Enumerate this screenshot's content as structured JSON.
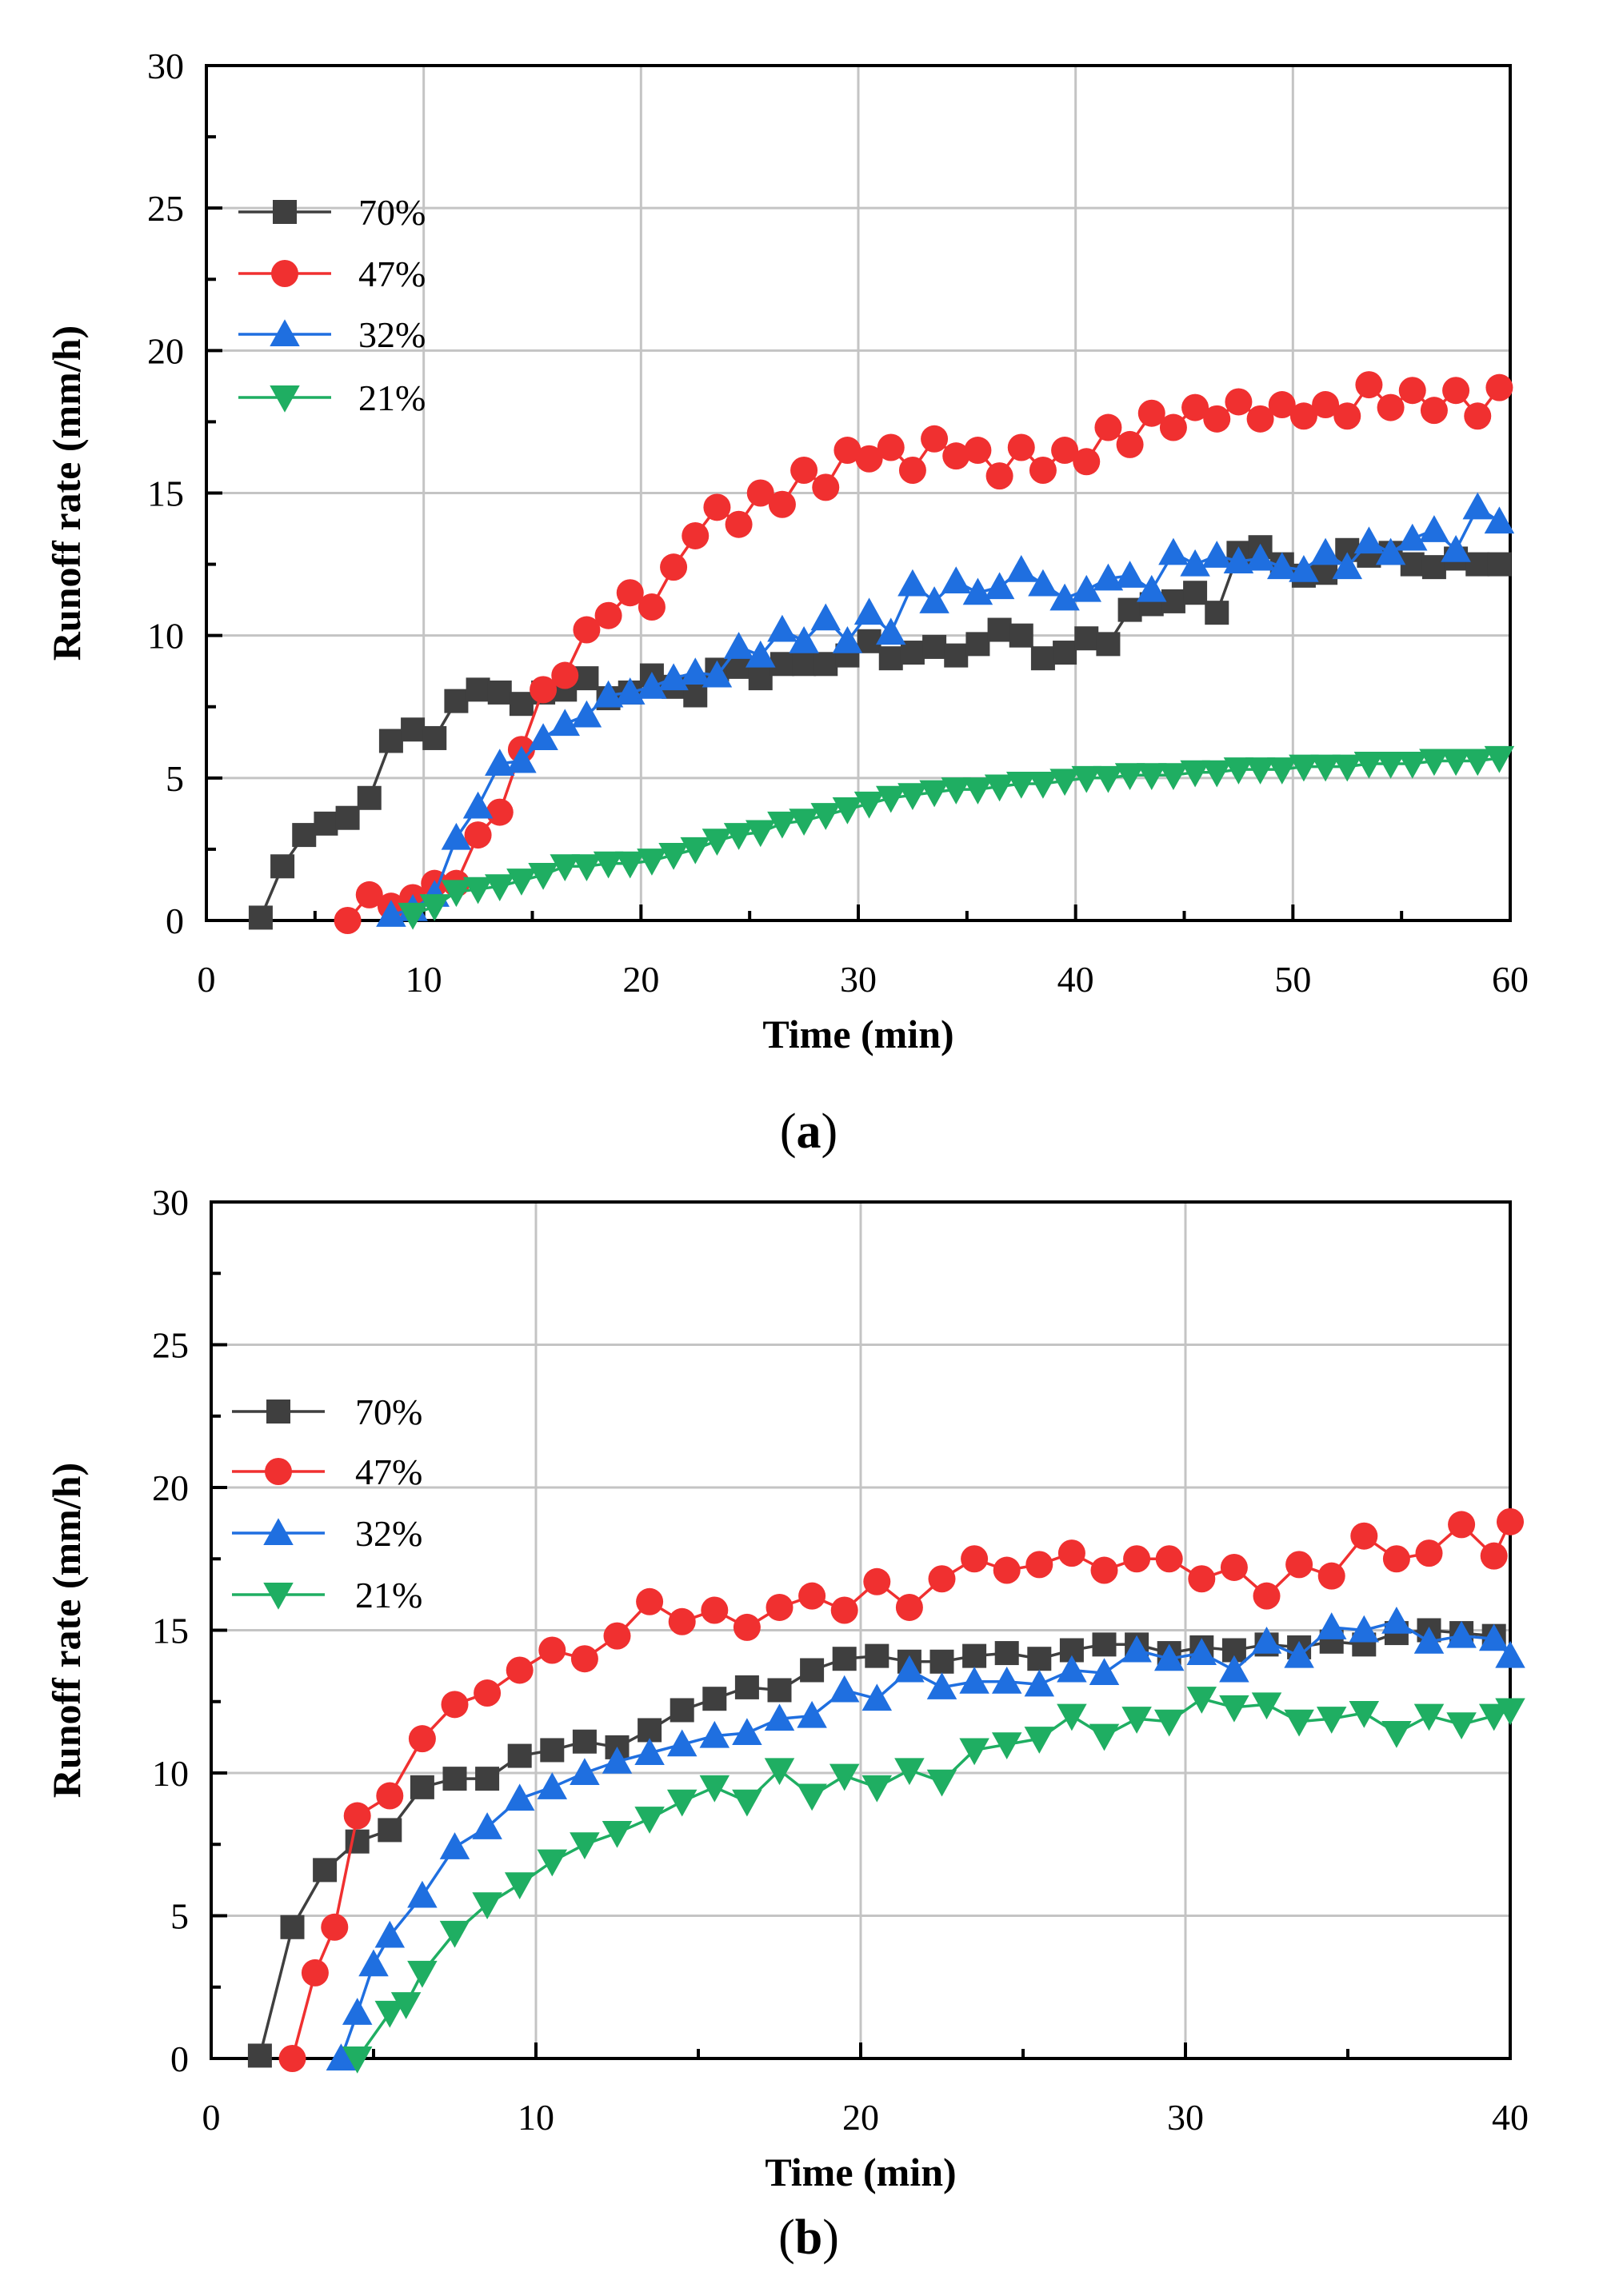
{
  "chart_data": [
    {
      "type": "line",
      "panel_label": "a",
      "xlabel": "Time (min)",
      "ylabel": "Runoff rate (mm/h)",
      "xlim": [
        0,
        60
      ],
      "ylim": [
        0,
        30
      ],
      "xticks": [
        0,
        10,
        20,
        30,
        40,
        50,
        60
      ],
      "yticks": [
        0,
        5,
        10,
        15,
        20,
        25,
        30
      ],
      "grid": true,
      "legend_position": "upper-left",
      "series": [
        {
          "name": "70%",
          "color": "#3f3f3f",
          "marker": "square",
          "x": [
            2.5,
            3.5,
            4.5,
            5.5,
            6.5,
            7.5,
            8.5,
            9.5,
            10.5,
            11.5,
            12.5,
            13.5,
            14.5,
            15.5,
            16.5,
            17.5,
            18.5,
            19.5,
            20.5,
            21.5,
            22.5,
            23.5,
            24.5,
            25.5,
            26.5,
            27.5,
            28.5,
            29.5,
            30.5,
            31.5,
            32.5,
            33.5,
            34.5,
            35.5,
            36.5,
            37.5,
            38.5,
            39.5,
            40.5,
            41.5,
            42.5,
            43.5,
            44.5,
            45.5,
            46.5,
            47.5,
            48.5,
            49.5,
            50.5,
            51.5,
            52.5,
            53.5,
            54.5,
            55.5,
            56.5,
            57.5,
            58.5,
            59.5
          ],
          "y": [
            0.1,
            1.9,
            3.0,
            3.4,
            3.6,
            4.3,
            6.3,
            6.7,
            6.4,
            7.7,
            8.1,
            8.0,
            7.6,
            8.0,
            8.1,
            8.5,
            7.8,
            8.0,
            8.6,
            8.2,
            7.9,
            8.8,
            8.9,
            8.5,
            9.0,
            9.0,
            9.0,
            9.3,
            9.8,
            9.2,
            9.4,
            9.6,
            9.3,
            9.7,
            10.2,
            10.0,
            9.2,
            9.4,
            9.9,
            9.7,
            10.9,
            11.1,
            11.2,
            11.5,
            10.8,
            12.9,
            13.1,
            12.5,
            12.1,
            12.2,
            13.0,
            12.8,
            12.9,
            12.5,
            12.4,
            12.7,
            12.5,
            12.5
          ]
        },
        {
          "name": "47%",
          "color": "#f03030",
          "marker": "circle",
          "x": [
            6.5,
            7.5,
            8.5,
            9.5,
            10.5,
            11.5,
            12.5,
            13.5,
            14.5,
            15.5,
            16.5,
            17.5,
            18.5,
            19.5,
            20.5,
            21.5,
            22.5,
            23.5,
            24.5,
            25.5,
            26.5,
            27.5,
            28.5,
            29.5,
            30.5,
            31.5,
            32.5,
            33.5,
            34.5,
            35.5,
            36.5,
            37.5,
            38.5,
            39.5,
            40.5,
            41.5,
            42.5,
            43.5,
            44.5,
            45.5,
            46.5,
            47.5,
            48.5,
            49.5,
            50.5,
            51.5,
            52.5,
            53.5,
            54.5,
            55.5,
            56.5,
            57.5,
            58.5,
            59.5
          ],
          "y": [
            0.0,
            0.9,
            0.5,
            0.8,
            1.3,
            1.3,
            3.0,
            3.8,
            6.0,
            8.1,
            8.6,
            10.2,
            10.7,
            11.5,
            11.0,
            12.4,
            13.5,
            14.5,
            13.9,
            15.0,
            14.6,
            15.8,
            15.2,
            16.5,
            16.2,
            16.6,
            15.8,
            16.9,
            16.3,
            16.5,
            15.6,
            16.6,
            15.8,
            16.5,
            16.1,
            17.3,
            16.7,
            17.8,
            17.3,
            18.0,
            17.6,
            18.2,
            17.6,
            18.1,
            17.7,
            18.1,
            17.7,
            18.8,
            18.0,
            18.6,
            17.9,
            18.6,
            17.7,
            18.7
          ]
        },
        {
          "name": "32%",
          "color": "#1f6fe0",
          "marker": "triangle-up",
          "x": [
            8.5,
            9.5,
            10.5,
            11.5,
            12.5,
            13.5,
            14.5,
            15.5,
            16.5,
            17.5,
            18.5,
            19.5,
            20.5,
            21.5,
            22.5,
            23.5,
            24.5,
            25.5,
            26.5,
            27.5,
            28.5,
            29.5,
            30.5,
            31.5,
            32.5,
            33.5,
            34.5,
            35.5,
            36.5,
            37.5,
            38.5,
            39.5,
            40.5,
            41.5,
            42.5,
            43.5,
            44.5,
            45.5,
            46.5,
            47.5,
            48.5,
            49.5,
            50.5,
            51.5,
            52.5,
            53.5,
            54.5,
            55.5,
            56.5,
            57.5,
            58.5,
            59.5
          ],
          "y": [
            0.2,
            0.4,
            0.9,
            2.9,
            4.0,
            5.5,
            5.6,
            6.4,
            6.9,
            7.2,
            7.9,
            8.0,
            8.2,
            8.5,
            8.7,
            8.6,
            9.6,
            9.3,
            10.2,
            9.8,
            10.6,
            9.8,
            10.8,
            10.1,
            11.8,
            11.2,
            11.9,
            11.5,
            11.7,
            12.3,
            11.8,
            11.3,
            11.6,
            12.0,
            12.1,
            11.6,
            12.9,
            12.5,
            12.8,
            12.6,
            12.7,
            12.4,
            12.3,
            12.9,
            12.4,
            13.3,
            12.9,
            13.4,
            13.7,
            13.0,
            14.5,
            14.0
          ]
        },
        {
          "name": "21%",
          "color": "#1fae62",
          "marker": "triangle-down",
          "x": [
            9.5,
            10.5,
            11.5,
            12.5,
            13.5,
            14.5,
            15.5,
            16.5,
            17.5,
            18.5,
            19.5,
            20.5,
            21.5,
            22.5,
            23.5,
            24.5,
            25.5,
            26.5,
            27.5,
            28.5,
            29.5,
            30.5,
            31.5,
            32.5,
            33.5,
            34.5,
            35.5,
            36.5,
            37.5,
            38.5,
            39.5,
            40.5,
            41.5,
            42.5,
            43.5,
            44.5,
            45.5,
            46.5,
            47.5,
            48.5,
            49.5,
            50.5,
            51.5,
            52.5,
            53.5,
            54.5,
            55.5,
            56.5,
            57.5,
            58.5,
            59.5
          ],
          "y": [
            0.2,
            0.5,
            1.0,
            1.1,
            1.2,
            1.4,
            1.6,
            1.9,
            1.9,
            2.0,
            2.0,
            2.1,
            2.3,
            2.5,
            2.8,
            3.0,
            3.1,
            3.4,
            3.5,
            3.7,
            3.9,
            4.1,
            4.3,
            4.4,
            4.5,
            4.6,
            4.6,
            4.7,
            4.8,
            4.8,
            4.9,
            5.0,
            5.0,
            5.1,
            5.1,
            5.1,
            5.2,
            5.2,
            5.3,
            5.3,
            5.3,
            5.4,
            5.4,
            5.4,
            5.5,
            5.5,
            5.5,
            5.6,
            5.6,
            5.6,
            5.7
          ]
        }
      ]
    },
    {
      "type": "line",
      "panel_label": "b",
      "xlabel": "Time (min)",
      "ylabel": "Runoff rate (mm/h)",
      "xlim": [
        0,
        40
      ],
      "ylim": [
        0,
        30
      ],
      "xticks": [
        0,
        10,
        20,
        30,
        40
      ],
      "yticks": [
        0,
        5,
        10,
        15,
        20,
        25,
        30
      ],
      "grid": true,
      "legend_position": "upper-left",
      "series": [
        {
          "name": "70%",
          "color": "#3f3f3f",
          "marker": "square",
          "x": [
            1.5,
            2.5,
            3.5,
            4.5,
            5.5,
            6.5,
            7.5,
            8.5,
            9.5,
            10.5,
            11.5,
            12.5,
            13.5,
            14.5,
            15.5,
            16.5,
            17.5,
            18.5,
            19.5,
            20.5,
            21.5,
            22.5,
            23.5,
            24.5,
            25.5,
            26.5,
            27.5,
            28.5,
            29.5,
            30.5,
            31.5,
            32.5,
            33.5,
            34.5,
            35.5,
            36.5,
            37.5,
            38.5,
            39.5
          ],
          "y": [
            0.1,
            4.6,
            6.6,
            7.6,
            8.0,
            9.5,
            9.8,
            9.8,
            10.6,
            10.8,
            11.1,
            10.9,
            11.5,
            12.2,
            12.6,
            13.0,
            12.9,
            13.6,
            14.0,
            14.1,
            13.9,
            13.9,
            14.1,
            14.2,
            14.0,
            14.3,
            14.5,
            14.5,
            14.2,
            14.4,
            14.3,
            14.5,
            14.4,
            14.6,
            14.5,
            14.9,
            15.0,
            14.9,
            14.8
          ]
        },
        {
          "name": "47%",
          "color": "#f03030",
          "marker": "circle",
          "x": [
            2.5,
            3.2,
            3.8,
            4.5,
            5.5,
            6.5,
            7.5,
            8.5,
            9.5,
            10.5,
            11.5,
            12.5,
            13.5,
            14.5,
            15.5,
            16.5,
            17.5,
            18.5,
            19.5,
            20.5,
            21.5,
            22.5,
            23.5,
            24.5,
            25.5,
            26.5,
            27.5,
            28.5,
            29.5,
            30.5,
            31.5,
            32.5,
            33.5,
            34.5,
            35.5,
            36.5,
            37.5,
            38.5,
            39.5,
            40.0
          ],
          "y": [
            0.0,
            3.0,
            4.6,
            8.5,
            9.2,
            11.2,
            12.4,
            12.8,
            13.6,
            14.3,
            14.0,
            14.8,
            16.0,
            15.3,
            15.7,
            15.1,
            15.8,
            16.2,
            15.7,
            16.7,
            15.8,
            16.8,
            17.5,
            17.1,
            17.3,
            17.7,
            17.1,
            17.5,
            17.5,
            16.8,
            17.2,
            16.2,
            17.3,
            16.9,
            18.3,
            17.5,
            17.7,
            18.7,
            17.6,
            18.8
          ]
        },
        {
          "name": "32%",
          "color": "#1f6fe0",
          "marker": "triangle-up",
          "x": [
            4.0,
            4.5,
            5.0,
            5.5,
            6.5,
            7.5,
            8.5,
            9.5,
            10.5,
            11.5,
            12.5,
            13.5,
            14.5,
            15.5,
            16.5,
            17.5,
            18.5,
            19.5,
            20.5,
            21.5,
            22.5,
            23.5,
            24.5,
            25.5,
            26.5,
            27.5,
            28.5,
            29.5,
            30.5,
            31.5,
            32.5,
            33.5,
            34.5,
            35.5,
            36.5,
            37.5,
            38.5,
            39.5,
            40.0
          ],
          "y": [
            0.0,
            1.6,
            3.3,
            4.3,
            5.7,
            7.4,
            8.1,
            9.1,
            9.5,
            10.0,
            10.4,
            10.7,
            11.0,
            11.3,
            11.4,
            11.9,
            12.0,
            12.9,
            12.6,
            13.6,
            13.0,
            13.2,
            13.2,
            13.1,
            13.6,
            13.5,
            14.3,
            14.0,
            14.2,
            13.6,
            14.6,
            14.1,
            15.1,
            15.0,
            15.3,
            14.6,
            14.8,
            14.7,
            14.1
          ]
        },
        {
          "name": "21%",
          "color": "#1fae62",
          "marker": "triangle-down",
          "x": [
            4.5,
            5.5,
            6.0,
            6.5,
            7.5,
            8.5,
            9.5,
            10.5,
            11.5,
            12.5,
            13.5,
            14.5,
            15.5,
            16.5,
            17.5,
            18.5,
            19.5,
            20.5,
            21.5,
            22.5,
            23.5,
            24.5,
            25.5,
            26.5,
            27.5,
            28.5,
            29.5,
            30.5,
            31.5,
            32.5,
            33.5,
            34.5,
            35.5,
            36.5,
            37.5,
            38.5,
            39.5,
            40.0
          ],
          "y": [
            0.0,
            1.6,
            1.9,
            3.0,
            4.4,
            5.4,
            6.1,
            6.9,
            7.5,
            7.9,
            8.4,
            9.0,
            9.5,
            9.0,
            10.1,
            9.2,
            9.9,
            9.5,
            10.1,
            9.7,
            10.8,
            11.0,
            11.2,
            12.0,
            11.3,
            11.9,
            11.8,
            12.6,
            12.3,
            12.4,
            11.8,
            11.9,
            12.1,
            11.4,
            12.0,
            11.7,
            12.0,
            12.2
          ]
        }
      ]
    }
  ]
}
